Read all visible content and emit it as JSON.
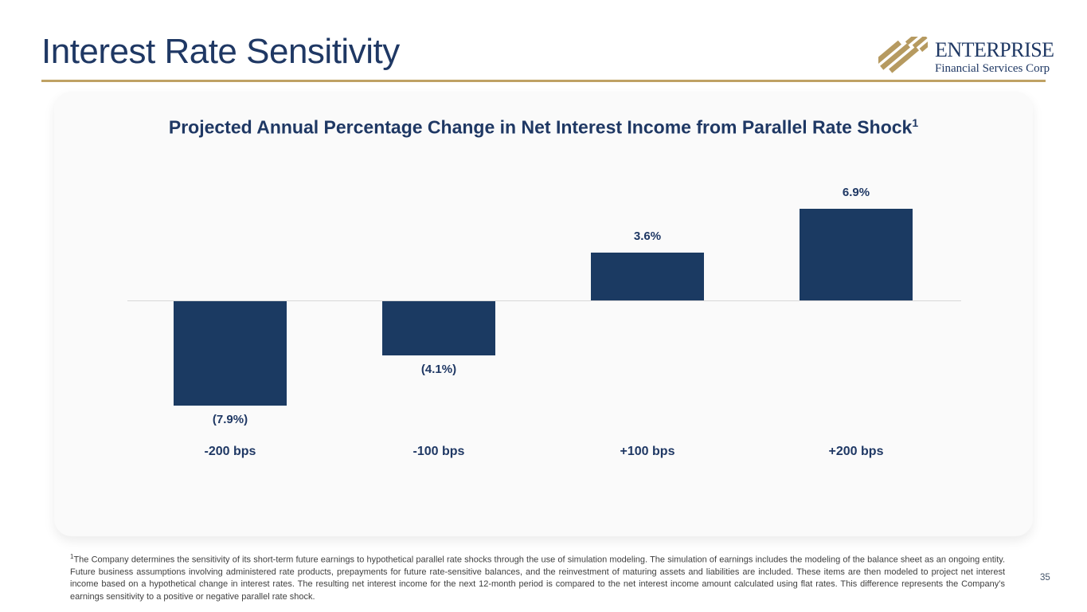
{
  "slide": {
    "title": "Interest Rate Sensitivity",
    "page_number": "35"
  },
  "logo": {
    "icon": "gold-diagonal-stripes-icon",
    "wordmark": "ENTERPRISE",
    "subtitle": "Financial Services Corp"
  },
  "chart_data": {
    "type": "bar",
    "title": "Projected Annual Percentage Change in Net Interest Income from Parallel Rate Shock",
    "title_superscript": "1",
    "categories": [
      "-200 bps",
      "-100 bps",
      "+100 bps",
      "+200 bps"
    ],
    "values": [
      -7.9,
      -4.1,
      3.6,
      6.9
    ],
    "value_labels": [
      "(7.9%)",
      "(4.1%)",
      "3.6%",
      "6.9%"
    ],
    "xlabel": "",
    "ylabel": "",
    "ylim": [
      -9,
      8
    ],
    "grid": false,
    "legend": false,
    "bar_color": "#1B3A62",
    "baseline_color": "#D8D8D8"
  },
  "footnote": {
    "superscript": "1",
    "text": "The Company determines the sensitivity of its short-term future earnings to hypothetical parallel rate shocks through the use of simulation modeling. The simulation of earnings includes the modeling of the balance sheet as an ongoing entity. Future business assumptions involving administered rate products, prepayments for future rate-sensitive balances, and the reinvestment of maturing assets and liabilities are included. These items are then modeled to project net interest income based on a hypothetical change in interest rates. The resulting net interest income for the next 12-month period is compared to the net interest income amount calculated using flat rates. This difference represents the Company’s earnings sensitivity to a positive or negative parallel rate shock."
  },
  "colors": {
    "accent_gold": "#BFA264",
    "logo_gold": "#B69A60",
    "navy": "#1F3864",
    "bar_navy": "#1B3A62",
    "card_background": "#FAFAFA"
  }
}
